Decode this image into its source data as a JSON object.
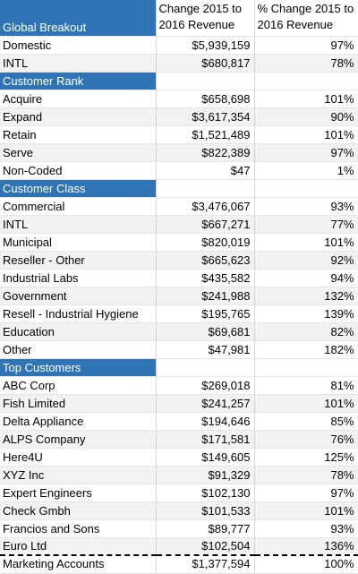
{
  "header": {
    "label": "Global Breakout",
    "col2": [
      "Change 2015 to",
      "2016 Revenue"
    ],
    "col3": [
      "% Change 2015 to",
      "2016 Revenue"
    ]
  },
  "global": [
    {
      "name": "Domestic",
      "change": "$5,939,159",
      "pct": "97%"
    },
    {
      "name": "INTL",
      "change": "$680,817",
      "pct": "78%"
    }
  ],
  "customer_rank": {
    "title": "Customer Rank",
    "rows": [
      {
        "name": "Acquire",
        "change": "$658,698",
        "pct": "101%"
      },
      {
        "name": "Expand",
        "change": "$3,617,354",
        "pct": "90%"
      },
      {
        "name": "Retain",
        "change": "$1,521,489",
        "pct": "101%"
      },
      {
        "name": "Serve",
        "change": "$822,389",
        "pct": "97%"
      },
      {
        "name": "Non-Coded",
        "change": "$47",
        "pct": "1%"
      }
    ]
  },
  "customer_class": {
    "title": "Customer Class",
    "rows": [
      {
        "name": "Commercial",
        "change": "$3,476,067",
        "pct": "93%"
      },
      {
        "name": "INTL",
        "change": "$667,271",
        "pct": "77%"
      },
      {
        "name": "Municipal",
        "change": "$820,019",
        "pct": "101%"
      },
      {
        "name": "Reseller - Other",
        "change": "$665,623",
        "pct": "92%"
      },
      {
        "name": "Industrial Labs",
        "change": "$435,582",
        "pct": "94%"
      },
      {
        "name": "Government",
        "change": "$241,988",
        "pct": "132%"
      },
      {
        "name": "Resell - Industrial Hygiene",
        "change": "$195,765",
        "pct": "139%"
      },
      {
        "name": "Education",
        "change": "$69,681",
        "pct": "82%"
      },
      {
        "name": "Other",
        "change": "$47,981",
        "pct": "182%"
      }
    ]
  },
  "top_customers": {
    "title": "Top Customers",
    "rows": [
      {
        "name": "ABC Corp",
        "change": "$269,018",
        "pct": "81%"
      },
      {
        "name": "Fish Limited",
        "change": "$241,257",
        "pct": "101%"
      },
      {
        "name": "Delta Appliance",
        "change": "$194,646",
        "pct": "85%"
      },
      {
        "name": "ALPS Company",
        "change": "$171,581",
        "pct": "76%"
      },
      {
        "name": "Here4U",
        "change": "$149,605",
        "pct": "125%"
      },
      {
        "name": "XYZ Inc",
        "change": "$91,329",
        "pct": "78%"
      },
      {
        "name": "Expert Engineers",
        "change": "$102,130",
        "pct": "97%"
      },
      {
        "name": "Check Gmbh",
        "change": "$101,533",
        "pct": "101%"
      },
      {
        "name": "Francios and Sons",
        "change": "$89,777",
        "pct": "93%"
      },
      {
        "name": "Euro Ltd",
        "change": "$102,504",
        "pct": "136%"
      }
    ]
  },
  "marketing": {
    "name": "Marketing Accounts",
    "change": "$1,377,594",
    "pct": "100%"
  }
}
